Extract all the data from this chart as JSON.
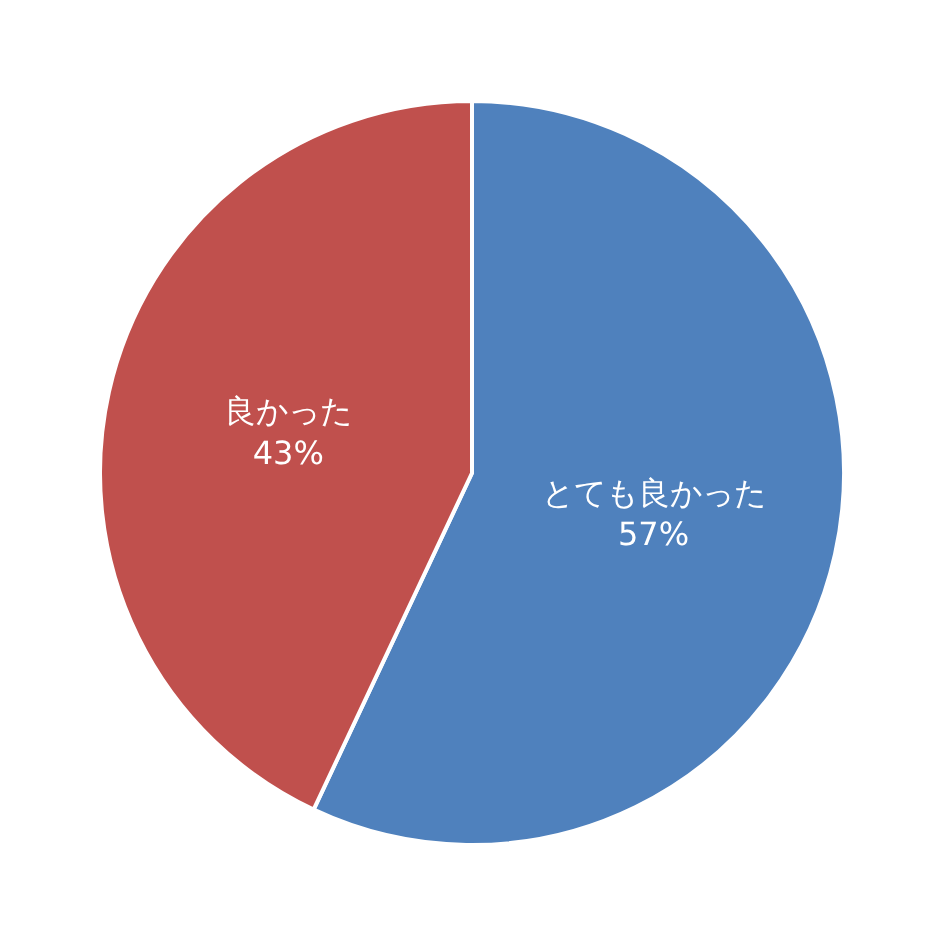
{
  "chart_data": {
    "type": "pie",
    "categories": [
      "とても良かった",
      "良かった"
    ],
    "values": [
      57,
      43
    ],
    "colors": [
      "#4f81bd",
      "#c0504d"
    ],
    "value_labels": [
      "57%",
      "43%"
    ],
    "legend": false
  }
}
